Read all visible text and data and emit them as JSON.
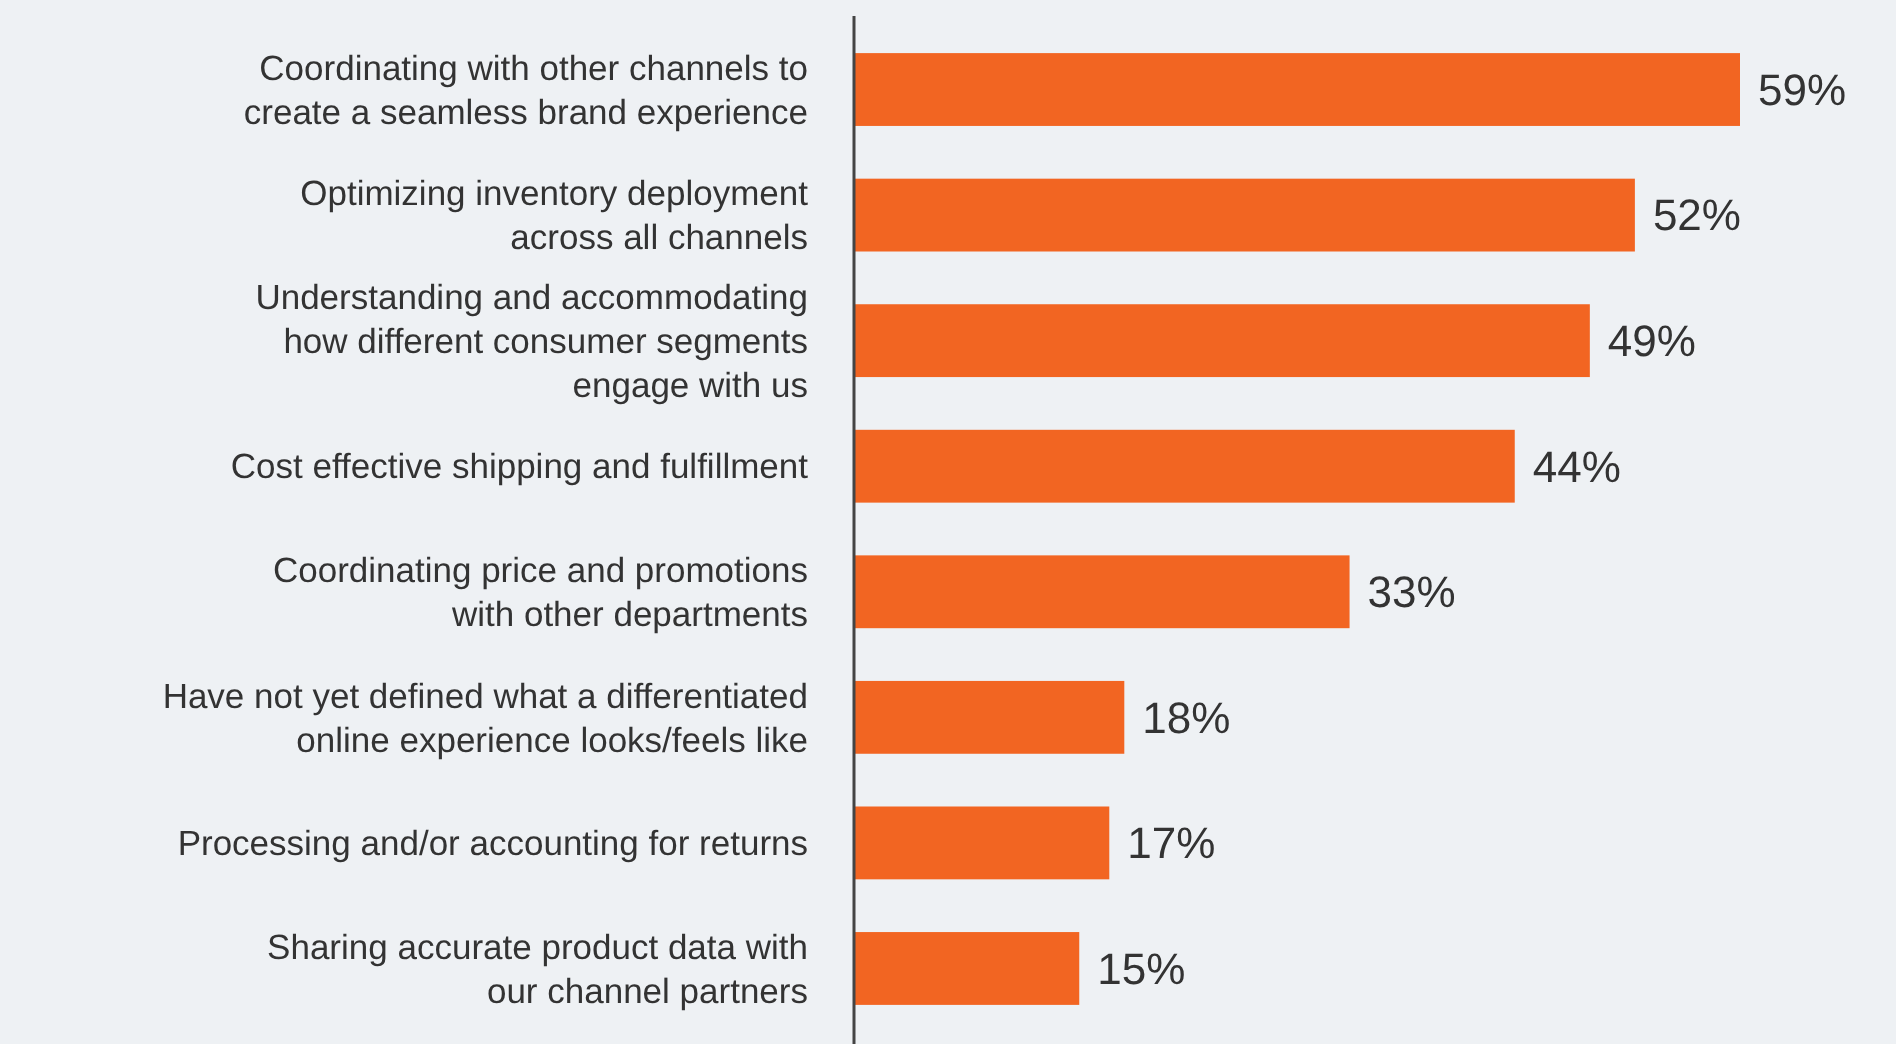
{
  "chart_data": {
    "type": "bar",
    "orientation": "horizontal",
    "categories": [
      "Coordinating with other channels to\ncreate a seamless brand experience",
      "Optimizing inventory deployment\nacross all channels",
      "Understanding and accommodating\nhow different consumer segments\nengage with us",
      "Cost effective shipping and fulfillment",
      "Coordinating price and promotions\nwith other departments",
      "Have not yet defined what a differentiated\nonline experience looks/feels like",
      "Processing and/or accounting for returns",
      "Sharing accurate product data with\nour channel partners"
    ],
    "values": [
      59,
      52,
      49,
      44,
      33,
      18,
      17,
      15
    ],
    "value_labels": [
      "59%",
      "52%",
      "49%",
      "44%",
      "33%",
      "18%",
      "17%",
      "15%"
    ],
    "color": "#f26522"
  }
}
